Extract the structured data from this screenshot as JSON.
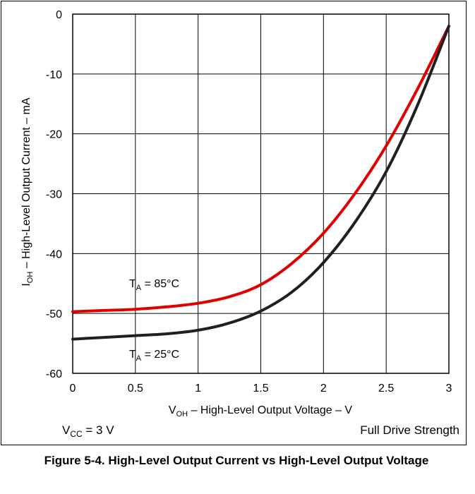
{
  "chart_data": {
    "type": "line",
    "title": "Figure 5-4. High-Level Output Current vs High-Level Output Voltage",
    "xlabel": {
      "main": "V",
      "sub": "OH",
      "rest": " – High-Level Output Voltage – V"
    },
    "ylabel": {
      "main": "I",
      "sub": "OH",
      "rest": " – High-Level Output Current – mA"
    },
    "xlim": [
      0,
      3
    ],
    "ylim": [
      -60,
      0
    ],
    "xticks": [
      0,
      0.5,
      1,
      1.5,
      2,
      2.5,
      3
    ],
    "xtick_labels": [
      "0",
      "0.5",
      "1",
      "1.5",
      "2",
      "2.5",
      "3"
    ],
    "yticks": [
      0,
      -10,
      -20,
      -30,
      -40,
      -50,
      -60
    ],
    "ytick_labels": [
      "0",
      "-10",
      "-20",
      "-30",
      "-40",
      "-50",
      "-60"
    ],
    "grid": true,
    "series": [
      {
        "name": "TA = 85°C",
        "color": "#e00000",
        "x": [
          0,
          0.25,
          0.5,
          0.75,
          1.0,
          1.25,
          1.5,
          1.75,
          2.0,
          2.25,
          2.5,
          2.75,
          3.0
        ],
        "y": [
          -49.7,
          -49.5,
          -49.3,
          -48.9,
          -48.3,
          -47.2,
          -45.2,
          -41.6,
          -36.6,
          -30.0,
          -22.0,
          -12.5,
          -2.0
        ]
      },
      {
        "name": "TA = 25°C",
        "color": "#231f20",
        "x": [
          0,
          0.25,
          0.5,
          0.75,
          1.0,
          1.25,
          1.5,
          1.75,
          2.0,
          2.25,
          2.5,
          2.75,
          3.0
        ],
        "y": [
          -54.3,
          -54.0,
          -53.7,
          -53.4,
          -52.8,
          -51.6,
          -49.6,
          -46.4,
          -41.5,
          -34.8,
          -26.3,
          -15.2,
          -2.0
        ]
      }
    ],
    "annotations": {
      "t85": {
        "main": "T",
        "sub": "A",
        "rest": " = 85°C"
      },
      "t25": {
        "main": "T",
        "sub": "A",
        "rest": " = 25°C"
      }
    },
    "conditions": {
      "vcc": {
        "main": "V",
        "sub": "CC",
        "rest": " = 3 V"
      },
      "drive": "Full Drive Strength"
    }
  }
}
